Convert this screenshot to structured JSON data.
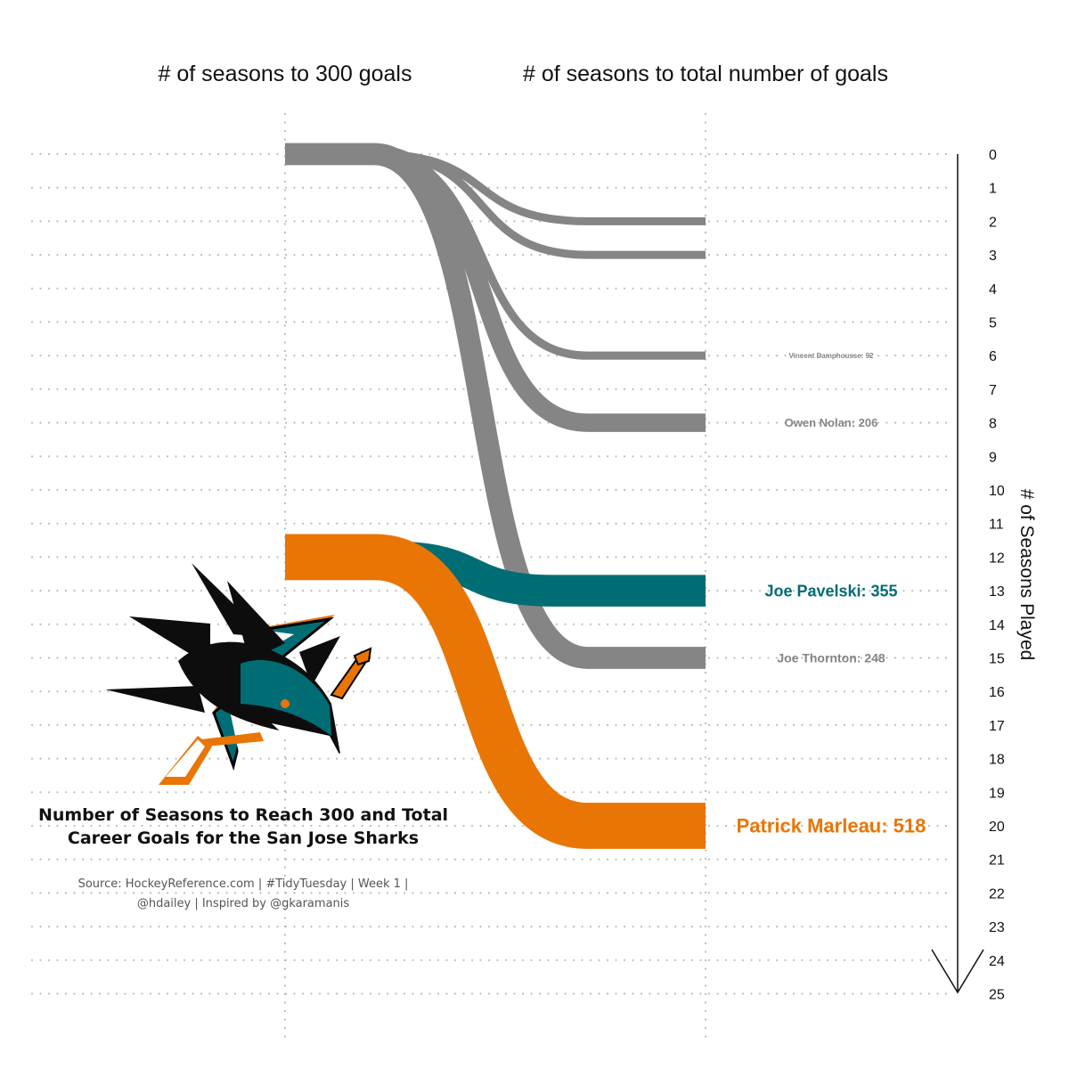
{
  "header": {
    "left": "# of seasons to 300 goals",
    "right": "# of seasons to total number of goals"
  },
  "title": {
    "line1": "Number of Seasons to Reach 300 and Total",
    "line2": "Career Goals for the San Jose Sharks"
  },
  "source": {
    "line1": "Source: HockeyReference.com | #TidyTuesday | Week 1 |",
    "line2": "@hdailey | Inspired by @gkaramanis"
  },
  "colors": {
    "gray": "#858585",
    "orange": "#e97505",
    "teal": "#006d75",
    "grid": "#bbbbbb"
  },
  "logo": {
    "icon": "san-jose-sharks-logo"
  },
  "chart_data": {
    "type": "sankey",
    "ylabel": "# of Seasons Played",
    "ylim": [
      0,
      25
    ],
    "ticks": [
      0,
      1,
      2,
      3,
      4,
      5,
      6,
      7,
      8,
      9,
      10,
      11,
      12,
      13,
      14,
      15,
      16,
      17,
      18,
      19,
      20,
      21,
      22,
      23,
      24,
      25
    ],
    "series": [
      {
        "name": "Patrick Marleau",
        "label": "Patrick Marleau: 518",
        "goals": 518,
        "seasons_to_300": 12,
        "seasons_total": 20,
        "color": "#e97505",
        "label_size": 22
      },
      {
        "name": "Joe Pavelski",
        "label": "Joe Pavelski: 355",
        "goals": 355,
        "seasons_to_300": 12,
        "seasons_total": 13,
        "color": "#006d75",
        "label_size": 18
      },
      {
        "name": "Joe Thornton",
        "label": "Joe Thornton: 248",
        "goals": 248,
        "seasons_to_300": 0,
        "seasons_total": 15,
        "color": "#858585",
        "label_size": 14
      },
      {
        "name": "Owen Nolan",
        "label": "Owen Nolan: 206",
        "goals": 206,
        "seasons_to_300": 0,
        "seasons_total": 8,
        "color": "#858585",
        "label_size": 13
      },
      {
        "name": "Vincent Damphousse",
        "label": "Vincent Damphousse: 92",
        "goals": 92,
        "seasons_to_300": 0,
        "seasons_total": 6,
        "color": "#858585",
        "label_size": 8
      },
      {
        "name": "",
        "label": "",
        "goals": 0,
        "seasons_to_300": 0,
        "seasons_total": 3,
        "color": "#858585",
        "label_size": 3
      },
      {
        "name": "",
        "label": "",
        "goals": 0,
        "seasons_to_300": 0,
        "seasons_total": 2,
        "color": "#858585",
        "label_size": 3
      }
    ]
  }
}
